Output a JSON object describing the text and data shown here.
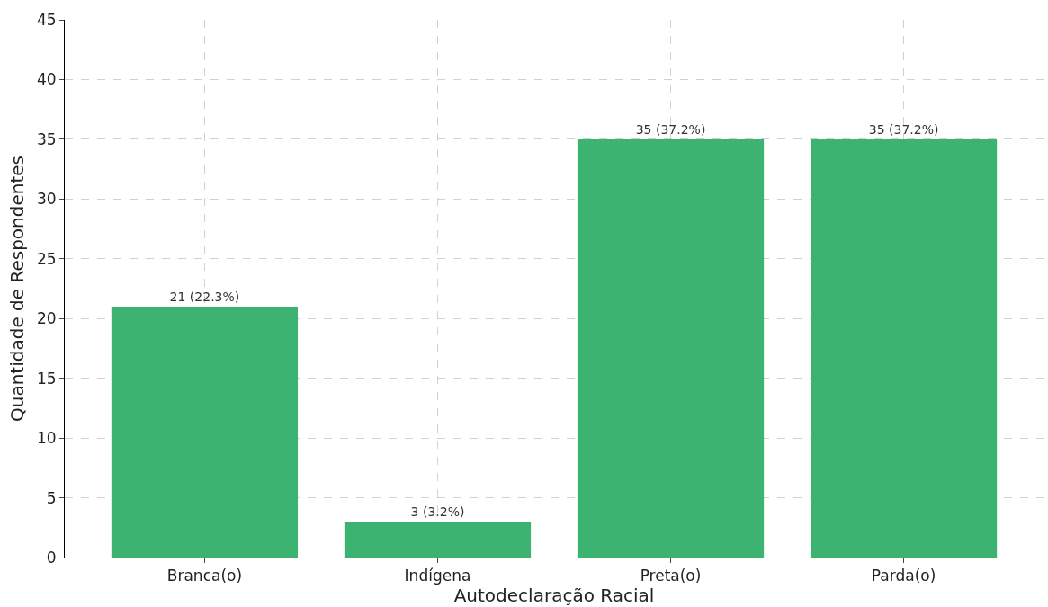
{
  "chart_data": {
    "type": "bar",
    "xlabel": "Autodeclaração Racial",
    "ylabel": "Quantidade de Respondentes",
    "categories": [
      "Branca(o)",
      "Indígena",
      "Preta(o)",
      "Parda(o)"
    ],
    "values": [
      21,
      3,
      35,
      35
    ],
    "value_labels": [
      "21 (22.3%)",
      "3 (3.2%)",
      "35 (37.2%)",
      "35 (37.2%)"
    ],
    "color": "#3cb371",
    "ylim": [
      0,
      45
    ],
    "yticks": [
      0,
      5,
      10,
      15,
      20,
      25,
      30,
      35,
      40,
      45
    ],
    "grid": true,
    "legend": false
  }
}
